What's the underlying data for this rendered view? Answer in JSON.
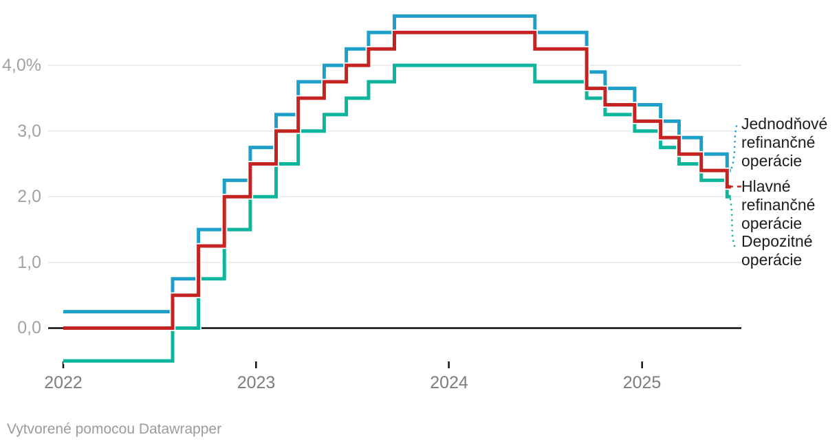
{
  "chart_data": {
    "type": "line",
    "subtype": "step-after",
    "title": "",
    "xlabel": "",
    "ylabel": "",
    "unit": "%",
    "grid": "horizontal",
    "legend_position": "right-annotations",
    "xlim_dates": [
      "2022-01-01",
      "2025-06-18"
    ],
    "ylim": [
      -0.6,
      4.95
    ],
    "end_date": "2025-06-18",
    "x_ticks": [
      {
        "label": "2022",
        "date": "2022-01-01"
      },
      {
        "label": "2023",
        "date": "2023-01-01"
      },
      {
        "label": "2024",
        "date": "2024-01-01"
      },
      {
        "label": "2025",
        "date": "2025-01-01"
      }
    ],
    "y_ticks": [
      {
        "label": "0,0",
        "value": 0
      },
      {
        "label": "1,0",
        "value": 1
      },
      {
        "label": "2,0",
        "value": 2
      },
      {
        "label": "3,0",
        "value": 3
      },
      {
        "label": "4,0%",
        "value": 4
      }
    ],
    "series": [
      {
        "name": "Jednodňové refinančné operácie",
        "color": "#1E9FC8",
        "points": [
          [
            "2022-01-01",
            0.25
          ],
          [
            "2022-07-27",
            0.75
          ],
          [
            "2022-09-14",
            1.5
          ],
          [
            "2022-11-02",
            2.25
          ],
          [
            "2022-12-21",
            2.75
          ],
          [
            "2023-02-08",
            3.25
          ],
          [
            "2023-03-22",
            3.75
          ],
          [
            "2023-05-10",
            4.0
          ],
          [
            "2023-06-21",
            4.25
          ],
          [
            "2023-08-02",
            4.5
          ],
          [
            "2023-09-20",
            4.75
          ],
          [
            "2024-06-12",
            4.5
          ],
          [
            "2024-09-18",
            3.9
          ],
          [
            "2024-10-23",
            3.65
          ],
          [
            "2024-12-18",
            3.4
          ],
          [
            "2025-02-05",
            3.15
          ],
          [
            "2025-03-12",
            2.9
          ],
          [
            "2025-04-23",
            2.65
          ],
          [
            "2025-06-11",
            2.4
          ]
        ]
      },
      {
        "name": "Depozitné operácie",
        "color": "#0DB59C",
        "points": [
          [
            "2022-01-01",
            -0.5
          ],
          [
            "2022-07-27",
            0.0
          ],
          [
            "2022-09-14",
            0.75
          ],
          [
            "2022-11-02",
            1.5
          ],
          [
            "2022-12-21",
            2.0
          ],
          [
            "2023-02-08",
            2.5
          ],
          [
            "2023-03-22",
            3.0
          ],
          [
            "2023-05-10",
            3.25
          ],
          [
            "2023-06-21",
            3.5
          ],
          [
            "2023-08-02",
            3.75
          ],
          [
            "2023-09-20",
            4.0
          ],
          [
            "2024-06-12",
            3.75
          ],
          [
            "2024-09-18",
            3.5
          ],
          [
            "2024-10-23",
            3.25
          ],
          [
            "2024-12-18",
            3.0
          ],
          [
            "2025-02-05",
            2.75
          ],
          [
            "2025-03-12",
            2.5
          ],
          [
            "2025-04-23",
            2.25
          ],
          [
            "2025-06-11",
            2.0
          ]
        ]
      },
      {
        "name": "Hlavné refinančné operácie",
        "color": "#C52321",
        "points": [
          [
            "2022-01-01",
            0.0
          ],
          [
            "2022-07-27",
            0.5
          ],
          [
            "2022-09-14",
            1.25
          ],
          [
            "2022-11-02",
            2.0
          ],
          [
            "2022-12-21",
            2.5
          ],
          [
            "2023-02-08",
            3.0
          ],
          [
            "2023-03-22",
            3.5
          ],
          [
            "2023-05-10",
            3.75
          ],
          [
            "2023-06-21",
            4.0
          ],
          [
            "2023-08-02",
            4.25
          ],
          [
            "2023-09-20",
            4.5
          ],
          [
            "2024-06-12",
            4.25
          ],
          [
            "2024-09-18",
            3.65
          ],
          [
            "2024-10-23",
            3.4
          ],
          [
            "2024-12-18",
            3.15
          ],
          [
            "2025-02-05",
            2.9
          ],
          [
            "2025-03-12",
            2.65
          ],
          [
            "2025-04-23",
            2.4
          ],
          [
            "2025-06-11",
            2.15
          ]
        ]
      }
    ],
    "colors": {
      "axis_line": "#0a0a0a",
      "gridline": "#e7e7e7",
      "y_tick_label": "#a2a2a2",
      "x_tick_label": "#7d7d7d",
      "legend_text": "#1d1d1d"
    }
  },
  "legend": {
    "items": [
      {
        "label": "Jednodňové refinančné operácie",
        "color": "#1E9FC8"
      },
      {
        "label": "Hlavné refinančné operácie",
        "color": "#C52321"
      },
      {
        "label": "Depozitné operácie",
        "color": "#0DB59C"
      }
    ]
  },
  "footer": {
    "text": "Vytvorené pomocou Datawrapper"
  }
}
